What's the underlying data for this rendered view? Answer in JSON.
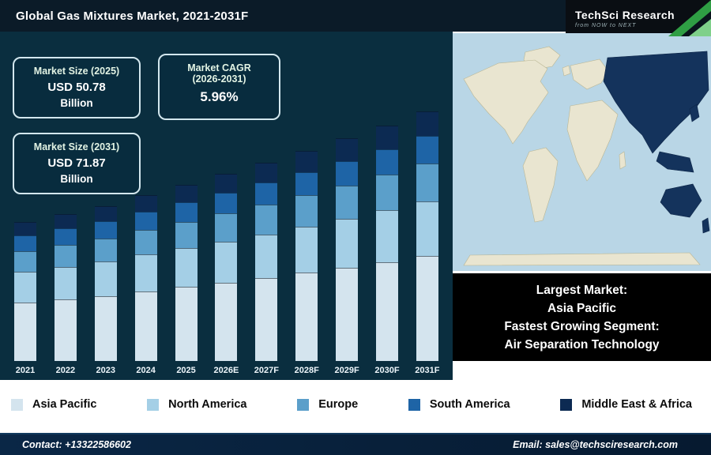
{
  "header": {
    "title": "Global Gas Mixtures Market, 2021-2031F"
  },
  "logo": {
    "name": "TechSci Research",
    "tagline": "from NOW to NEXT"
  },
  "info_boxes": {
    "market_size_2025": {
      "title": "Market Size (2025)",
      "value": "USD 50.78",
      "unit": "Billion"
    },
    "market_cagr": {
      "title_line1": "Market CAGR",
      "title_line2": "(2026-2031)",
      "value": "5.96%"
    },
    "market_size_2031": {
      "title": "Market Size (2031)",
      "value": "USD 71.87",
      "unit": "Billion"
    }
  },
  "map_caption": {
    "line1": "Largest Market:",
    "line2": "Asia Pacific",
    "line3": "Fastest Growing Segment:",
    "line4": "Air Separation Technology"
  },
  "chart_data": {
    "type": "bar",
    "stacked": true,
    "title": "Global Gas Mixtures Market, 2021-2031F",
    "unit": "USD Billion",
    "ylim": [
      0,
      80
    ],
    "grid": false,
    "legend_position": "bottom",
    "categories": [
      "2021",
      "2022",
      "2023",
      "2024",
      "2025",
      "2026E",
      "2027F",
      "2028F",
      "2029F",
      "2030F",
      "2031F"
    ],
    "totals": [
      40.1,
      42.31,
      44.6,
      47.81,
      50.78,
      53.81,
      57.0,
      60.4,
      64.0,
      67.81,
      71.87
    ],
    "series": [
      {
        "name": "Asia Pacific",
        "color": "#d4e4ee",
        "values": [
          16.84,
          17.77,
          18.73,
          20.08,
          21.33,
          22.6,
          23.94,
          25.37,
          26.88,
          28.48,
          30.19
        ]
      },
      {
        "name": "North America",
        "color": "#a4cfe6",
        "values": [
          8.82,
          9.31,
          9.81,
          10.52,
          11.17,
          11.84,
          12.54,
          13.29,
          14.08,
          14.92,
          15.81
        ]
      },
      {
        "name": "Europe",
        "color": "#5b9fca",
        "values": [
          6.02,
          6.35,
          6.69,
          7.17,
          7.62,
          8.07,
          8.55,
          9.06,
          9.6,
          10.17,
          10.78
        ]
      },
      {
        "name": "South America",
        "color": "#1e64a6",
        "values": [
          4.41,
          4.65,
          4.91,
          5.26,
          5.59,
          5.92,
          6.27,
          6.64,
          7.04,
          7.46,
          7.91
        ]
      },
      {
        "name": "Middle East & Africa",
        "color": "#0c2a52",
        "values": [
          4.01,
          4.23,
          4.46,
          4.78,
          5.08,
          5.38,
          5.7,
          6.04,
          6.4,
          6.78,
          7.19
        ]
      }
    ]
  },
  "footer": {
    "contact": "Contact: +13322586602",
    "email": "Email: sales@techsciresearch.com"
  }
}
